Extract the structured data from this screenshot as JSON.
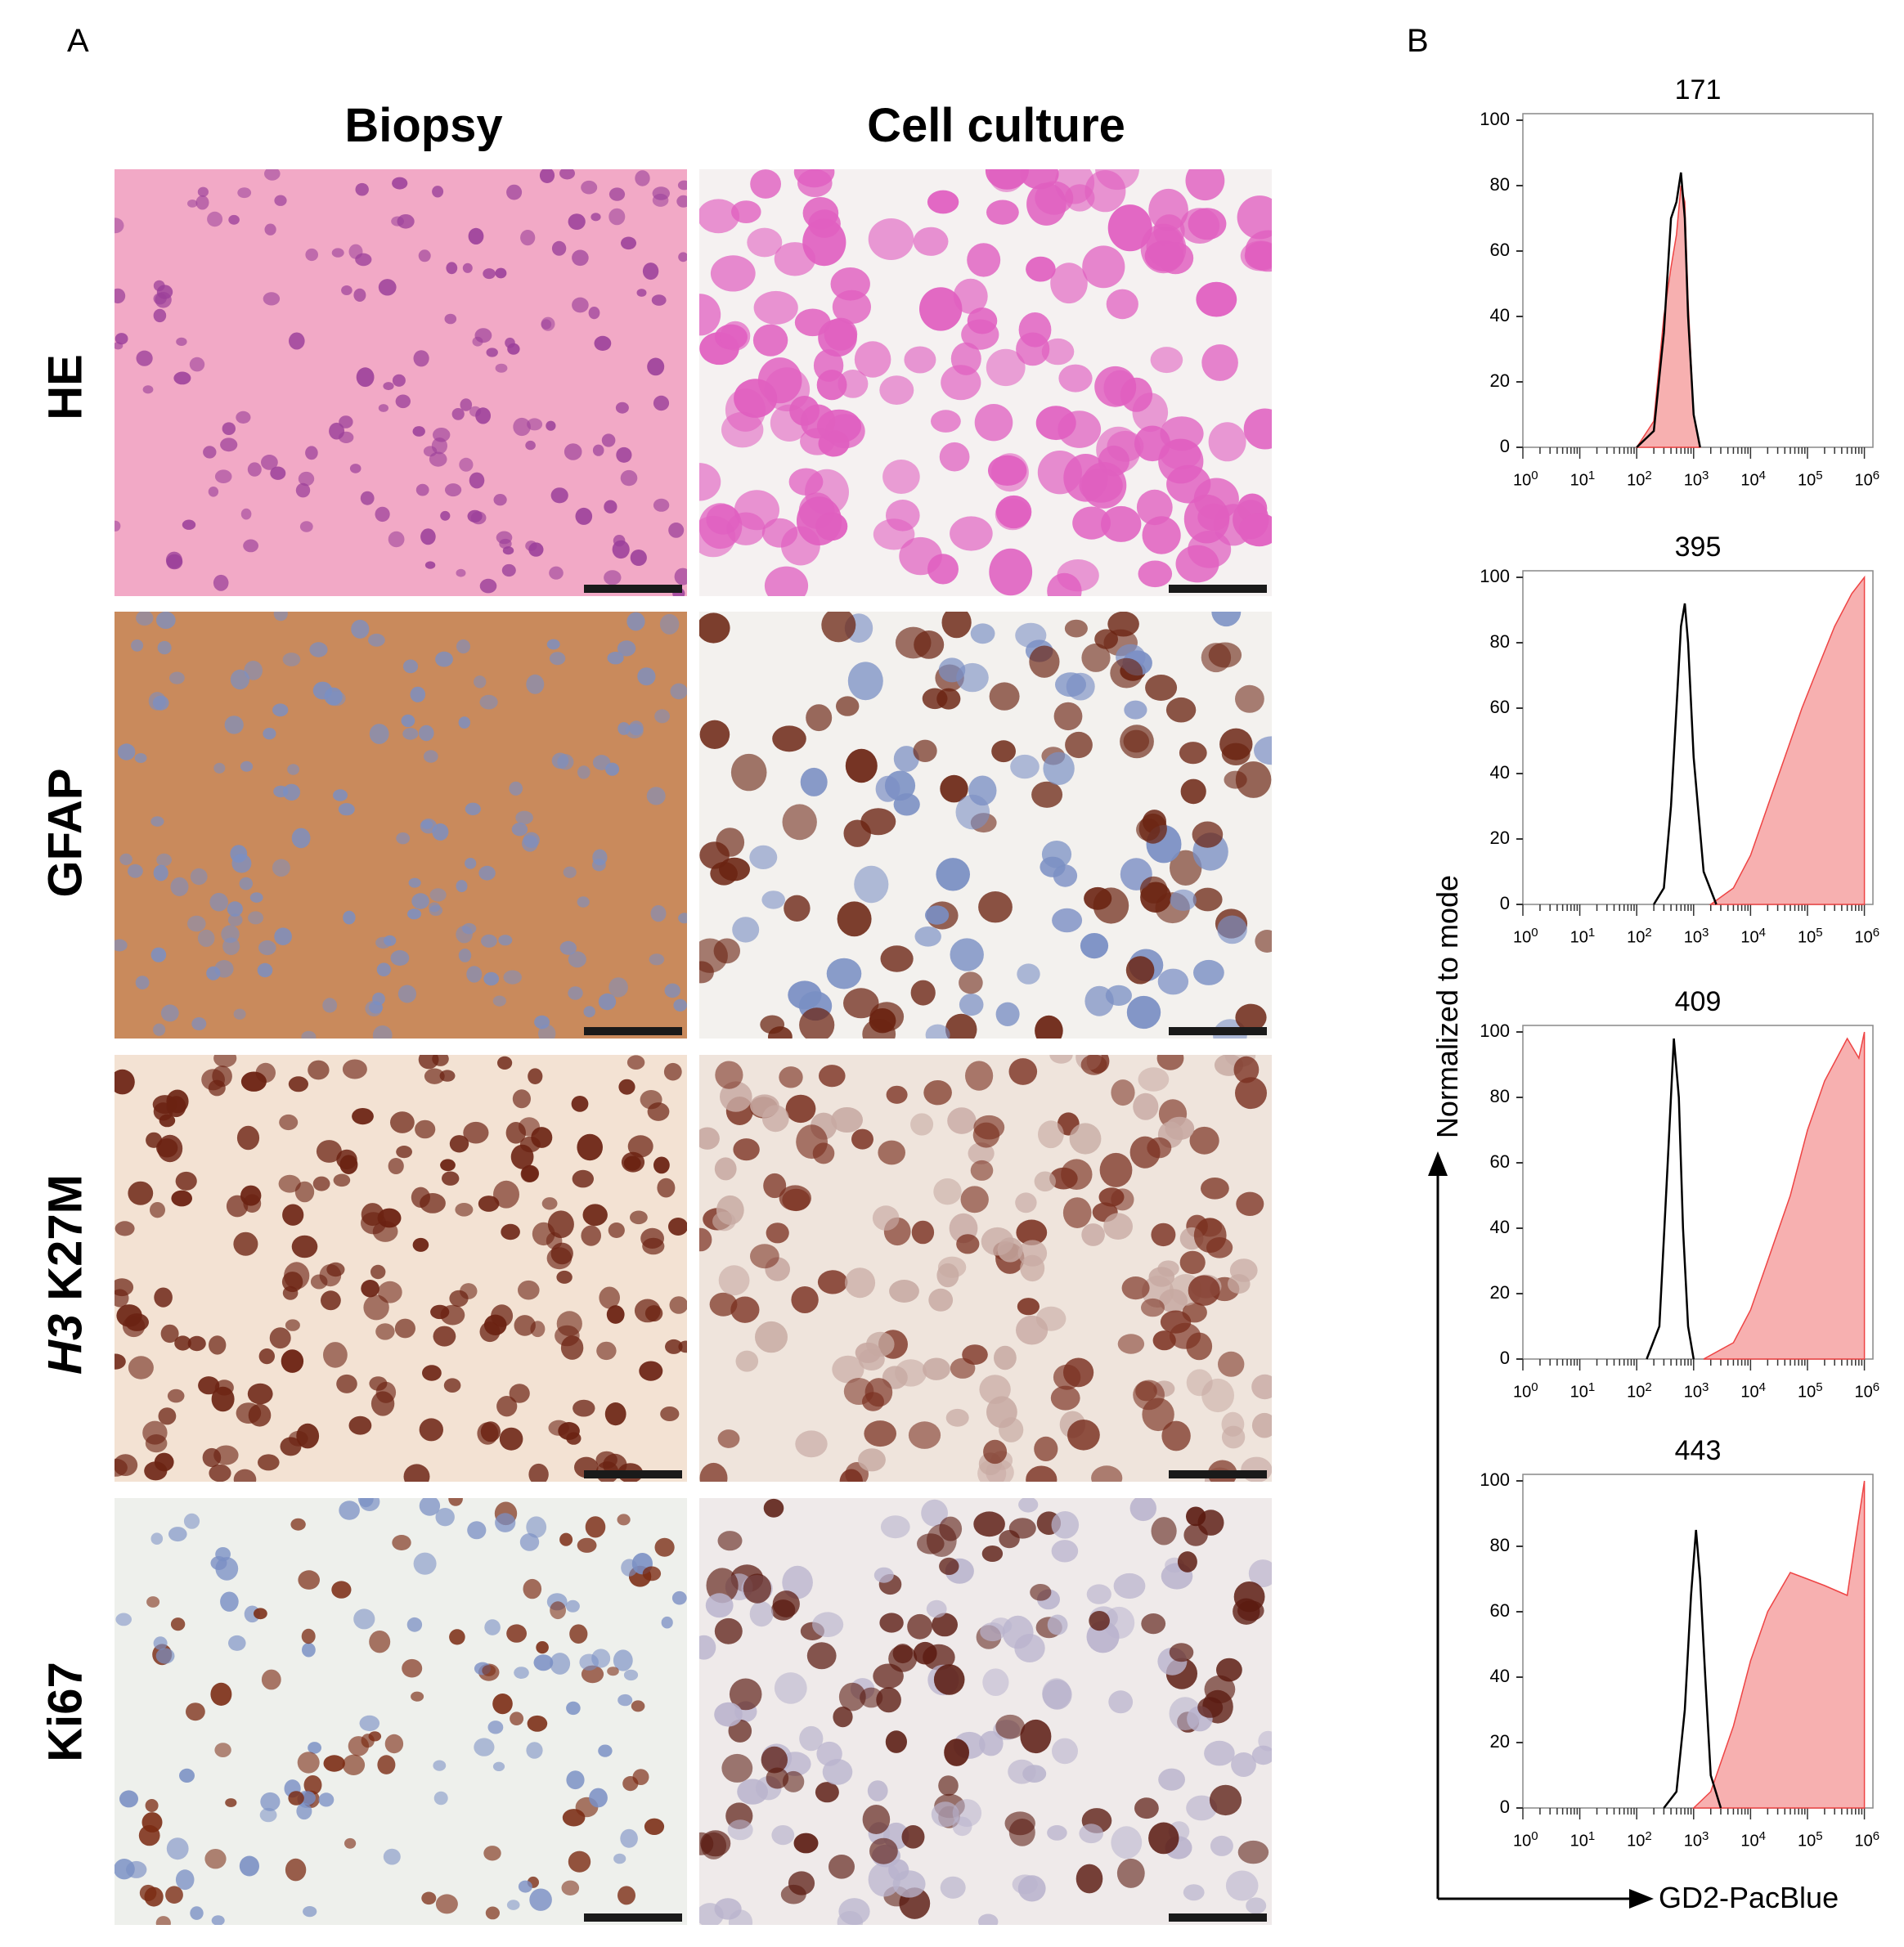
{
  "panels": {
    "a": {
      "letter": "A"
    },
    "b": {
      "letter": "B"
    }
  },
  "columns": [
    "Biopsy",
    "Cell culture"
  ],
  "rows": [
    {
      "label": "HE"
    },
    {
      "label": "GFAP"
    },
    {
      "label_italic": "H3",
      "label": "K27M"
    },
    {
      "label": "Ki67"
    }
  ],
  "colors": {
    "he_bg": "#f2a9c6",
    "he_nuclei": "#9b3f9a",
    "he_cells": "#e05fc0",
    "gfap_bg": "#c98a5c",
    "gfap_cells": "#6b2412",
    "blue_nuclei": "#7a8fc4",
    "h3_bg": "#f3e2d3",
    "h3_cells": "#6b2212",
    "ki_bg": "#eef0ec",
    "histogram_fill": "#f7b0b0",
    "histogram_line": "#e44",
    "control_line": "#000000"
  },
  "chart_data": [
    {
      "type": "area",
      "title": "171",
      "ylim": [
        0,
        100
      ],
      "yticks": [
        "100",
        "80",
        "60",
        "40",
        "20",
        "0"
      ],
      "x_scale": "log",
      "xticks": [
        "10^0",
        "10^1",
        "10^2",
        "10^3",
        "10^4",
        "10^5",
        "10^6"
      ],
      "series": [
        {
          "role": "control",
          "x": [
            100,
            200,
            300,
            400,
            500,
            600,
            700,
            800,
            1000,
            1300
          ],
          "values": [
            0,
            5,
            35,
            70,
            75,
            84,
            70,
            40,
            10,
            0
          ]
        },
        {
          "role": "stained",
          "x": [
            100,
            200,
            300,
            400,
            500,
            600,
            700,
            800,
            1000,
            1300
          ],
          "values": [
            0,
            8,
            40,
            55,
            65,
            80,
            75,
            45,
            10,
            0
          ]
        }
      ]
    },
    {
      "type": "area",
      "title": "395",
      "ylim": [
        0,
        100
      ],
      "yticks": [
        "100",
        "80",
        "60",
        "40",
        "20",
        "0"
      ],
      "x_scale": "log",
      "xticks": [
        "10^0",
        "10^1",
        "10^2",
        "10^3",
        "10^4",
        "10^5",
        "10^6"
      ],
      "series": [
        {
          "role": "control",
          "x": [
            200,
            300,
            400,
            500,
            600,
            700,
            800,
            1000,
            1500,
            2500
          ],
          "values": [
            0,
            5,
            30,
            60,
            85,
            92,
            80,
            45,
            10,
            0
          ]
        },
        {
          "role": "stained",
          "x": [
            2000,
            5000,
            10000,
            20000,
            40000,
            80000,
            150000,
            300000,
            600000,
            1000000
          ],
          "values": [
            0,
            5,
            15,
            30,
            45,
            60,
            72,
            85,
            95,
            100
          ]
        }
      ]
    },
    {
      "type": "area",
      "title": "409",
      "ylim": [
        0,
        100
      ],
      "yticks": [
        "100",
        "80",
        "60",
        "40",
        "20",
        "0"
      ],
      "x_scale": "log",
      "xticks": [
        "10^0",
        "10^1",
        "10^2",
        "10^3",
        "10^4",
        "10^5",
        "10^6"
      ],
      "series": [
        {
          "role": "control",
          "x": [
            150,
            250,
            350,
            450,
            550,
            650,
            800,
            1000
          ],
          "values": [
            0,
            10,
            60,
            98,
            80,
            40,
            10,
            0
          ]
        },
        {
          "role": "stained",
          "x": [
            1500,
            5000,
            10000,
            20000,
            50000,
            100000,
            200000,
            500000,
            800000,
            1000000
          ],
          "values": [
            0,
            5,
            15,
            30,
            50,
            70,
            85,
            98,
            92,
            100
          ]
        }
      ]
    },
    {
      "type": "area",
      "title": "443",
      "ylim": [
        0,
        100
      ],
      "yticks": [
        "100",
        "80",
        "60",
        "40",
        "20",
        "0"
      ],
      "x_scale": "log",
      "xticks": [
        "10^0",
        "10^1",
        "10^2",
        "10^3",
        "10^4",
        "10^5",
        "10^6"
      ],
      "series": [
        {
          "role": "control",
          "x": [
            300,
            500,
            700,
            900,
            1100,
            1300,
            1600,
            2000,
            3000
          ],
          "values": [
            0,
            5,
            30,
            65,
            85,
            70,
            40,
            10,
            0
          ]
        },
        {
          "role": "stained",
          "x": [
            1000,
            2000,
            5000,
            10000,
            20000,
            50000,
            100000,
            200000,
            500000,
            1000000
          ],
          "values": [
            0,
            5,
            25,
            45,
            60,
            72,
            70,
            68,
            65,
            100
          ]
        }
      ]
    }
  ],
  "axes": {
    "ylabel": "Normalized to mode",
    "xlabel": "GD2-PacBlue"
  }
}
